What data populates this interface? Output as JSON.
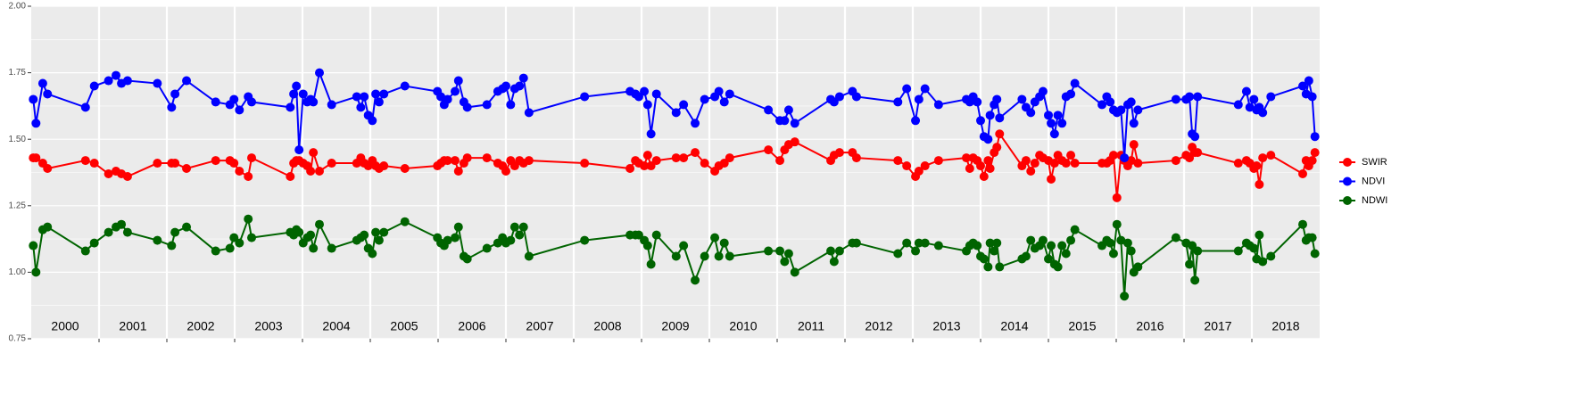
{
  "chart_data": {
    "type": "line",
    "x": [
      2000.03,
      2000.07,
      2000.17,
      2000.24,
      2000.8,
      2000.93,
      2001.14,
      2001.25,
      2001.33,
      2001.42,
      2001.86,
      2002.07,
      2002.12,
      2002.29,
      2002.72,
      2002.93,
      2002.99,
      2003.07,
      2003.2,
      2003.25,
      2003.82,
      2003.87,
      2003.91,
      2003.95,
      2004.01,
      2004.07,
      2004.12,
      2004.16,
      2004.25,
      2004.43,
      2004.8,
      2004.86,
      2004.91,
      2004.97,
      2005.03,
      2005.08,
      2005.13,
      2005.2,
      2005.51,
      2005.99,
      2006.04,
      2006.09,
      2006.14,
      2006.25,
      2006.3,
      2006.38,
      2006.43,
      2006.72,
      2006.88,
      2006.95,
      2007.0,
      2007.07,
      2007.13,
      2007.2,
      2007.26,
      2007.34,
      2008.16,
      2008.83,
      2008.91,
      2008.96,
      2009.04,
      2009.09,
      2009.14,
      2009.22,
      2009.51,
      2009.62,
      2009.79,
      2009.93,
      2010.08,
      2010.14,
      2010.22,
      2010.3,
      2010.87,
      2011.04,
      2011.11,
      2011.17,
      2011.26,
      2011.79,
      2011.84,
      2011.92,
      2012.11,
      2012.17,
      2012.78,
      2012.91,
      2013.04,
      2013.09,
      2013.18,
      2013.38,
      2013.79,
      2013.84,
      2013.89,
      2013.95,
      2014.0,
      2014.05,
      2014.11,
      2014.14,
      2014.2,
      2014.24,
      2014.28,
      2014.61,
      2014.67,
      2014.74,
      2014.8,
      2014.87,
      2014.92,
      2015.0,
      2015.04,
      2015.09,
      2015.14,
      2015.2,
      2015.26,
      2015.33,
      2015.39,
      2015.79,
      2015.86,
      2015.91,
      2015.96,
      2016.01,
      2016.07,
      2016.12,
      2016.17,
      2016.22,
      2016.26,
      2016.32,
      2016.88,
      2017.03,
      2017.08,
      2017.12,
      2017.16,
      2017.2,
      2017.8,
      2017.92,
      2017.97,
      2018.03,
      2018.07,
      2018.11,
      2018.16,
      2018.28,
      2018.75,
      2018.8,
      2018.84,
      2018.89,
      2018.93
    ],
    "series": [
      {
        "name": "SWIR",
        "color": "#ff0000",
        "values": [
          1.43,
          1.43,
          1.41,
          1.39,
          1.42,
          1.41,
          1.37,
          1.38,
          1.37,
          1.36,
          1.41,
          1.41,
          1.41,
          1.39,
          1.42,
          1.42,
          1.41,
          1.38,
          1.36,
          1.43,
          1.36,
          1.41,
          1.42,
          1.42,
          1.41,
          1.4,
          1.38,
          1.45,
          1.38,
          1.41,
          1.41,
          1.43,
          1.41,
          1.4,
          1.42,
          1.4,
          1.39,
          1.4,
          1.39,
          1.4,
          1.41,
          1.42,
          1.42,
          1.42,
          1.38,
          1.41,
          1.43,
          1.43,
          1.41,
          1.4,
          1.38,
          1.42,
          1.4,
          1.42,
          1.41,
          1.42,
          1.41,
          1.39,
          1.42,
          1.41,
          1.4,
          1.44,
          1.4,
          1.42,
          1.43,
          1.43,
          1.45,
          1.41,
          1.38,
          1.4,
          1.41,
          1.43,
          1.46,
          1.42,
          1.46,
          1.48,
          1.49,
          1.42,
          1.44,
          1.45,
          1.45,
          1.43,
          1.42,
          1.4,
          1.36,
          1.38,
          1.4,
          1.42,
          1.43,
          1.39,
          1.43,
          1.42,
          1.4,
          1.36,
          1.42,
          1.39,
          1.45,
          1.47,
          1.52,
          1.4,
          1.42,
          1.38,
          1.41,
          1.44,
          1.43,
          1.42,
          1.35,
          1.41,
          1.44,
          1.42,
          1.41,
          1.44,
          1.41,
          1.41,
          1.41,
          1.42,
          1.44,
          1.28,
          1.44,
          1.42,
          1.4,
          1.42,
          1.48,
          1.41,
          1.42,
          1.44,
          1.43,
          1.47,
          1.45,
          1.45,
          1.41,
          1.42,
          1.41,
          1.39,
          1.4,
          1.33,
          1.43,
          1.44,
          1.37,
          1.42,
          1.4,
          1.42,
          1.45
        ]
      },
      {
        "name": "NDVI",
        "color": "#0000ff",
        "values": [
          1.65,
          1.56,
          1.71,
          1.67,
          1.62,
          1.7,
          1.72,
          1.74,
          1.71,
          1.72,
          1.71,
          1.62,
          1.67,
          1.72,
          1.64,
          1.63,
          1.65,
          1.61,
          1.66,
          1.64,
          1.62,
          1.67,
          1.7,
          1.46,
          1.67,
          1.64,
          1.65,
          1.64,
          1.75,
          1.63,
          1.66,
          1.62,
          1.66,
          1.59,
          1.57,
          1.67,
          1.64,
          1.67,
          1.7,
          1.68,
          1.66,
          1.63,
          1.65,
          1.68,
          1.72,
          1.64,
          1.62,
          1.63,
          1.68,
          1.69,
          1.7,
          1.63,
          1.69,
          1.7,
          1.73,
          1.6,
          1.66,
          1.68,
          1.67,
          1.66,
          1.68,
          1.63,
          1.52,
          1.67,
          1.6,
          1.63,
          1.56,
          1.65,
          1.66,
          1.68,
          1.64,
          1.67,
          1.61,
          1.57,
          1.57,
          1.61,
          1.56,
          1.65,
          1.64,
          1.66,
          1.68,
          1.66,
          1.64,
          1.69,
          1.57,
          1.65,
          1.69,
          1.63,
          1.65,
          1.64,
          1.66,
          1.64,
          1.57,
          1.51,
          1.5,
          1.59,
          1.63,
          1.65,
          1.58,
          1.65,
          1.62,
          1.6,
          1.64,
          1.66,
          1.68,
          1.59,
          1.56,
          1.52,
          1.59,
          1.56,
          1.66,
          1.67,
          1.71,
          1.63,
          1.66,
          1.64,
          1.61,
          1.6,
          1.61,
          1.43,
          1.63,
          1.64,
          1.56,
          1.61,
          1.65,
          1.65,
          1.66,
          1.52,
          1.51,
          1.66,
          1.63,
          1.68,
          1.62,
          1.65,
          1.61,
          1.62,
          1.6,
          1.66,
          1.7,
          1.67,
          1.72,
          1.66,
          1.51
        ]
      },
      {
        "name": "NDWI",
        "color": "#006400",
        "values": [
          1.1,
          1.0,
          1.16,
          1.17,
          1.08,
          1.11,
          1.15,
          1.17,
          1.18,
          1.15,
          1.12,
          1.1,
          1.15,
          1.17,
          1.08,
          1.09,
          1.13,
          1.11,
          1.2,
          1.13,
          1.15,
          1.14,
          1.16,
          1.15,
          1.11,
          1.13,
          1.14,
          1.09,
          1.18,
          1.09,
          1.12,
          1.13,
          1.14,
          1.09,
          1.07,
          1.15,
          1.12,
          1.15,
          1.19,
          1.13,
          1.11,
          1.1,
          1.12,
          1.13,
          1.17,
          1.06,
          1.05,
          1.09,
          1.11,
          1.13,
          1.11,
          1.12,
          1.17,
          1.14,
          1.17,
          1.06,
          1.12,
          1.14,
          1.14,
          1.14,
          1.12,
          1.1,
          1.03,
          1.14,
          1.06,
          1.1,
          0.97,
          1.06,
          1.13,
          1.06,
          1.11,
          1.06,
          1.08,
          1.08,
          1.04,
          1.07,
          1.0,
          1.08,
          1.04,
          1.08,
          1.11,
          1.11,
          1.07,
          1.11,
          1.08,
          1.11,
          1.11,
          1.1,
          1.08,
          1.1,
          1.11,
          1.1,
          1.06,
          1.05,
          1.02,
          1.11,
          1.08,
          1.11,
          1.02,
          1.05,
          1.06,
          1.12,
          1.09,
          1.1,
          1.12,
          1.05,
          1.1,
          1.03,
          1.02,
          1.1,
          1.07,
          1.12,
          1.16,
          1.1,
          1.12,
          1.11,
          1.07,
          1.18,
          1.12,
          0.91,
          1.11,
          1.08,
          1.0,
          1.02,
          1.13,
          1.11,
          1.03,
          1.1,
          0.97,
          1.08,
          1.08,
          1.11,
          1.1,
          1.09,
          1.05,
          1.14,
          1.04,
          1.06,
          1.18,
          1.12,
          1.13,
          1.13,
          1.07
        ]
      }
    ],
    "xlim": [
      2000,
      2019
    ],
    "xticks": [
      2001,
      2002,
      2003,
      2004,
      2005,
      2006,
      2007,
      2008,
      2009,
      2010,
      2011,
      2012,
      2013,
      2014,
      2015,
      2016,
      2017,
      2018
    ],
    "ylim": [
      0.75,
      2.0
    ],
    "yticks": [
      {
        "value": 0.75,
        "label": "0.75"
      },
      {
        "value": 1.0,
        "label": "1.00"
      },
      {
        "value": 1.25,
        "label": "1.25"
      },
      {
        "value": 1.5,
        "label": "1.50"
      },
      {
        "value": 1.75,
        "label": "1.75"
      },
      {
        "value": 2.0,
        "label": "2.00"
      }
    ],
    "annotations": [
      {
        "text": "2000",
        "x": 2000.5
      },
      {
        "text": "2001",
        "x": 2001.5
      },
      {
        "text": "2002",
        "x": 2002.5
      },
      {
        "text": "2003",
        "x": 2003.5
      },
      {
        "text": "2004",
        "x": 2004.5
      },
      {
        "text": "2005",
        "x": 2005.5
      },
      {
        "text": "2006",
        "x": 2006.5
      },
      {
        "text": "2007",
        "x": 2007.5
      },
      {
        "text": "2008",
        "x": 2008.5
      },
      {
        "text": "2009",
        "x": 2009.5
      },
      {
        "text": "2010",
        "x": 2010.5
      },
      {
        "text": "2011",
        "x": 2011.5
      },
      {
        "text": "2012",
        "x": 2012.5
      },
      {
        "text": "2013",
        "x": 2013.5
      },
      {
        "text": "2014",
        "x": 2014.5
      },
      {
        "text": "2015",
        "x": 2015.5
      },
      {
        "text": "2016",
        "x": 2016.5
      },
      {
        "text": "2017",
        "x": 2017.5
      },
      {
        "text": "2018",
        "x": 2018.5
      }
    ],
    "grid": true,
    "legend": "right"
  }
}
